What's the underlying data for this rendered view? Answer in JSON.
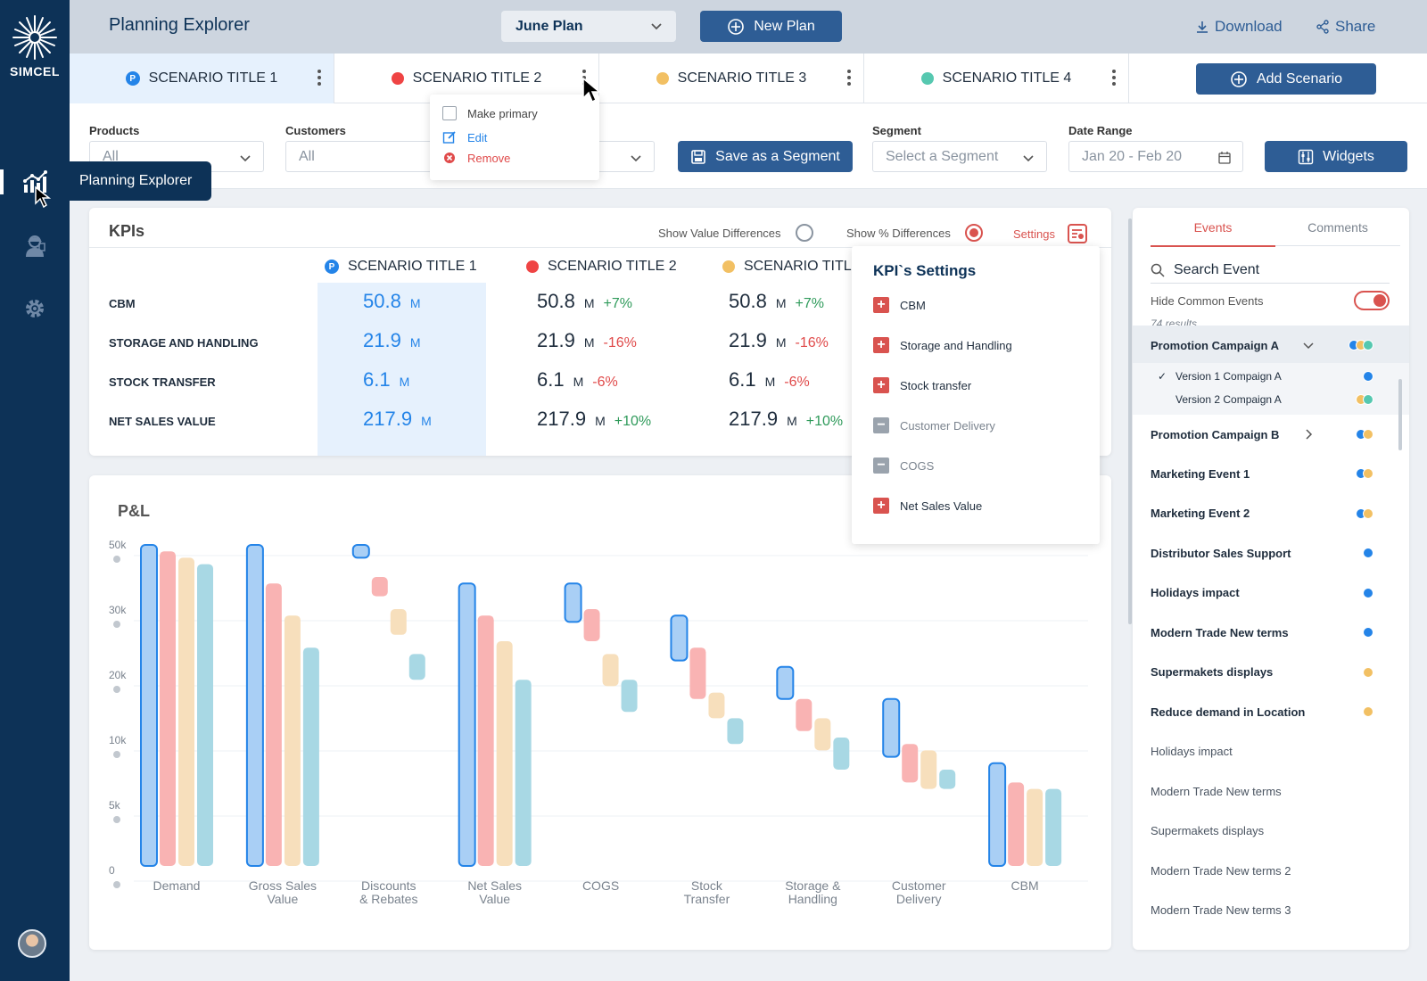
{
  "brand": {
    "name": "SIMCEL"
  },
  "sidebar": {
    "tooltip": "Planning Explorer",
    "items": [
      {
        "icon": "analytics-chart-icon"
      },
      {
        "icon": "worker-icon"
      },
      {
        "icon": "gear-icon"
      }
    ]
  },
  "header": {
    "title": "Planning Explorer",
    "plan_select": "June Plan",
    "new_plan": "New Plan",
    "download": "Download",
    "share": "Share"
  },
  "tabs": [
    {
      "label": "SCENARIO TITLE 1",
      "color": "#2484e8",
      "primary": true,
      "primary_badge": "P"
    },
    {
      "label": "SCENARIO TITLE 2",
      "color": "#ef4444"
    },
    {
      "label": "SCENARIO TITLE 3",
      "color": "#f2c063"
    },
    {
      "label": "SCENARIO TITLE 4",
      "color": "#56c8b0"
    }
  ],
  "add_scenario": "Add Scenario",
  "context_menu": {
    "make_primary": "Make primary",
    "edit": "Edit",
    "remove": "Remove"
  },
  "filters": {
    "products_label": "Products",
    "products_value": "All",
    "customers_label": "Customers",
    "customers_value": "All",
    "save_segment": "Save as a Segment",
    "segment_label": "Segment",
    "segment_placeholder": "Select a Segment",
    "date_label": "Date Range",
    "date_value": "Jan 20 - Feb 20",
    "widgets": "Widgets"
  },
  "kpis": {
    "title": "KPIs",
    "show_value_diff": "Show Value Differences",
    "show_pct_diff": "Show % Differences",
    "settings": "Settings",
    "columns": [
      "SCENARIO TITLE 1",
      "SCENARIO TITLE 2",
      "SCENARIO TITLE"
    ],
    "unit": "M",
    "rows": [
      {
        "label": "CBM",
        "values": [
          "50.8",
          "50.8",
          "50.8"
        ],
        "diffs": [
          "+7%",
          "+7%"
        ]
      },
      {
        "label": "STORAGE AND HANDLING",
        "values": [
          "21.9",
          "21.9",
          "21.9"
        ],
        "diffs": [
          "-16%",
          "-16%"
        ]
      },
      {
        "label": "STOCK TRANSFER",
        "values": [
          "6.1",
          "6.1",
          "6.1"
        ],
        "diffs": [
          "-6%",
          "-6%"
        ]
      },
      {
        "label": "NET SALES VALUE",
        "values": [
          "217.9",
          "217.9",
          "217.9"
        ],
        "diffs": [
          "+10%",
          "+10%"
        ]
      }
    ]
  },
  "kpi_settings": {
    "title": "KPI`s Settings",
    "items": [
      {
        "label": "CBM",
        "enabled": true
      },
      {
        "label": "Storage and Handling",
        "enabled": true
      },
      {
        "label": "Stock transfer",
        "enabled": true
      },
      {
        "label": "Customer Delivery",
        "enabled": false
      },
      {
        "label": "COGS",
        "enabled": false
      },
      {
        "label": "Net Sales Value",
        "enabled": true
      }
    ]
  },
  "chart_data": {
    "type": "bar",
    "title": "P&L",
    "y_ticks": [
      "50k",
      "30k",
      "20k",
      "10k",
      "5k",
      "0"
    ],
    "categories": [
      "Demand",
      "Gross Sales\nValue",
      "Discounts\n& Rebates",
      "Net Sales\nValue",
      "COGS",
      "Stock\nTransfer",
      "Storage &\nHandling",
      "Customer\nDelivery",
      "CBM"
    ],
    "series": [
      {
        "color": "#a9cff5",
        "stroke": "#2484e8",
        "ranges": [
          [
            0,
            50
          ],
          [
            0,
            50
          ],
          [
            48,
            50
          ],
          [
            0,
            44
          ],
          [
            38,
            44
          ],
          [
            32,
            39
          ],
          [
            26,
            31
          ],
          [
            17,
            26
          ],
          [
            0,
            16
          ]
        ]
      },
      {
        "color": "#f9b3b3",
        "ranges": [
          [
            0,
            49
          ],
          [
            0,
            44
          ],
          [
            42,
            45
          ],
          [
            0,
            39
          ],
          [
            35,
            40
          ],
          [
            26,
            34
          ],
          [
            21,
            26
          ],
          [
            13,
            19
          ],
          [
            0,
            13
          ]
        ]
      },
      {
        "color": "#f7dfbc",
        "ranges": [
          [
            0,
            48
          ],
          [
            0,
            39
          ],
          [
            36,
            40
          ],
          [
            0,
            35
          ],
          [
            28,
            33
          ],
          [
            23,
            27
          ],
          [
            18,
            23
          ],
          [
            12,
            18
          ],
          [
            0,
            12
          ]
        ]
      },
      {
        "color": "#a8d8e4",
        "ranges": [
          [
            0,
            47
          ],
          [
            0,
            34
          ],
          [
            29,
            33
          ],
          [
            0,
            29
          ],
          [
            24,
            29
          ],
          [
            19,
            23
          ],
          [
            15,
            20
          ],
          [
            12,
            15
          ],
          [
            0,
            12
          ]
        ]
      }
    ]
  },
  "events": {
    "tab_events": "Events",
    "tab_comments": "Comments",
    "search_placeholder": "Search Event",
    "hide_common": "Hide Common Events",
    "results": "74 results",
    "groups": [
      {
        "label": "Promotion Campaign A",
        "expanded": true,
        "dots": [
          "#2484e8",
          "#f2c063",
          "#56c8b0"
        ],
        "children": [
          {
            "label": "Version 1 Compaign A",
            "checked": true,
            "dots": [
              "#2484e8"
            ]
          },
          {
            "label": "Version 2 Compaign A",
            "checked": false,
            "dots": [
              "#f2c063",
              "#56c8b0"
            ]
          }
        ]
      },
      {
        "label": "Promotion Campaign B",
        "expanded": false,
        "dots": [
          "#2484e8",
          "#f2c063"
        ]
      }
    ],
    "items": [
      {
        "label": "Marketing Event 1",
        "dots": [
          "#2484e8",
          "#f2c063"
        ],
        "bold": true
      },
      {
        "label": "Marketing Event 2",
        "dots": [
          "#2484e8",
          "#f2c063"
        ],
        "bold": true
      },
      {
        "label": "Distributor Sales Support",
        "dots": [
          "#2484e8"
        ],
        "bold": true
      },
      {
        "label": "Holidays impact",
        "dots": [
          "#2484e8"
        ],
        "bold": true
      },
      {
        "label": "Modern Trade New terms",
        "dots": [
          "#2484e8"
        ],
        "bold": true
      },
      {
        "label": "Supermakets displays",
        "dots": [
          "#f2c063"
        ],
        "bold": true
      },
      {
        "label": "Reduce demand in Location",
        "dots": [
          "#f2c063"
        ],
        "bold": true
      },
      {
        "label": "Holidays impact",
        "dots": [],
        "bold": false
      },
      {
        "label": "Modern Trade New terms",
        "dots": [],
        "bold": false
      },
      {
        "label": "Supermakets displays",
        "dots": [],
        "bold": false
      },
      {
        "label": "Modern Trade New terms 2",
        "dots": [],
        "bold": false
      },
      {
        "label": "Modern Trade New terms 3",
        "dots": [],
        "bold": false
      }
    ]
  }
}
